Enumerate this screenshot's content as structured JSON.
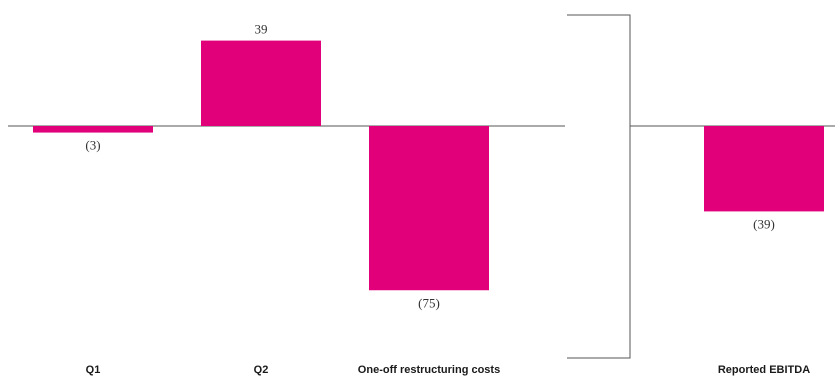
{
  "chart_data": {
    "type": "bar",
    "categories": [
      "Q1",
      "Q2",
      "One-off restructuring costs",
      "Reported EBITDA"
    ],
    "values": [
      -3,
      39,
      -75,
      -39
    ],
    "value_labels": [
      "(3)",
      "39",
      "(75)",
      "(39)"
    ],
    "title": "",
    "xlabel": "",
    "ylabel": "",
    "grid": false,
    "legend": "none",
    "panels": [
      {
        "categories": [
          0,
          1,
          2
        ]
      },
      {
        "categories": [
          3
        ]
      }
    ],
    "colors": {
      "bar": "#E2007A",
      "axis": "#555555",
      "text": "#1a1a1a"
    }
  }
}
